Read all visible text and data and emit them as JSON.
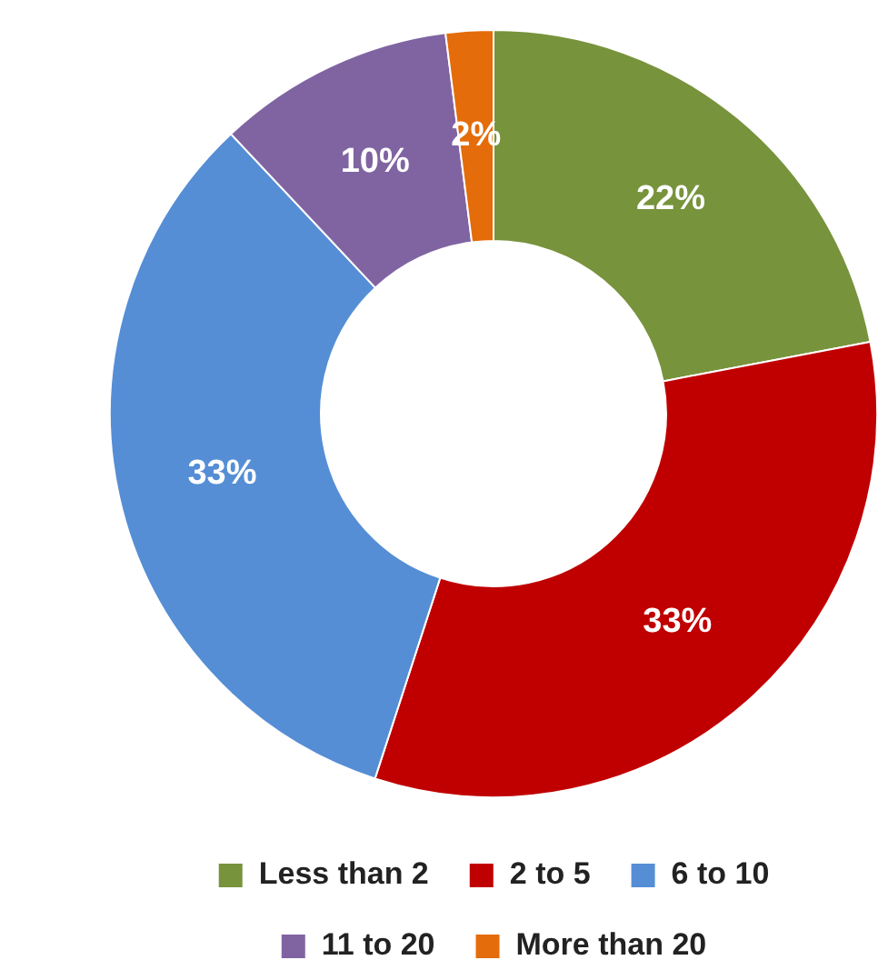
{
  "chart_data": {
    "type": "donut",
    "categories": [
      "Less than 2",
      "2 to 5",
      "6 to 10",
      "11 to 20",
      "More than 20"
    ],
    "values": [
      22,
      33,
      33,
      10,
      2
    ],
    "value_labels": [
      "22%",
      "33%",
      "33%",
      "10%",
      "2%"
    ],
    "colors": [
      "#77933c",
      "#c00000",
      "#558ed5",
      "#8064a2",
      "#e46c0a"
    ],
    "legend": "bottom"
  }
}
